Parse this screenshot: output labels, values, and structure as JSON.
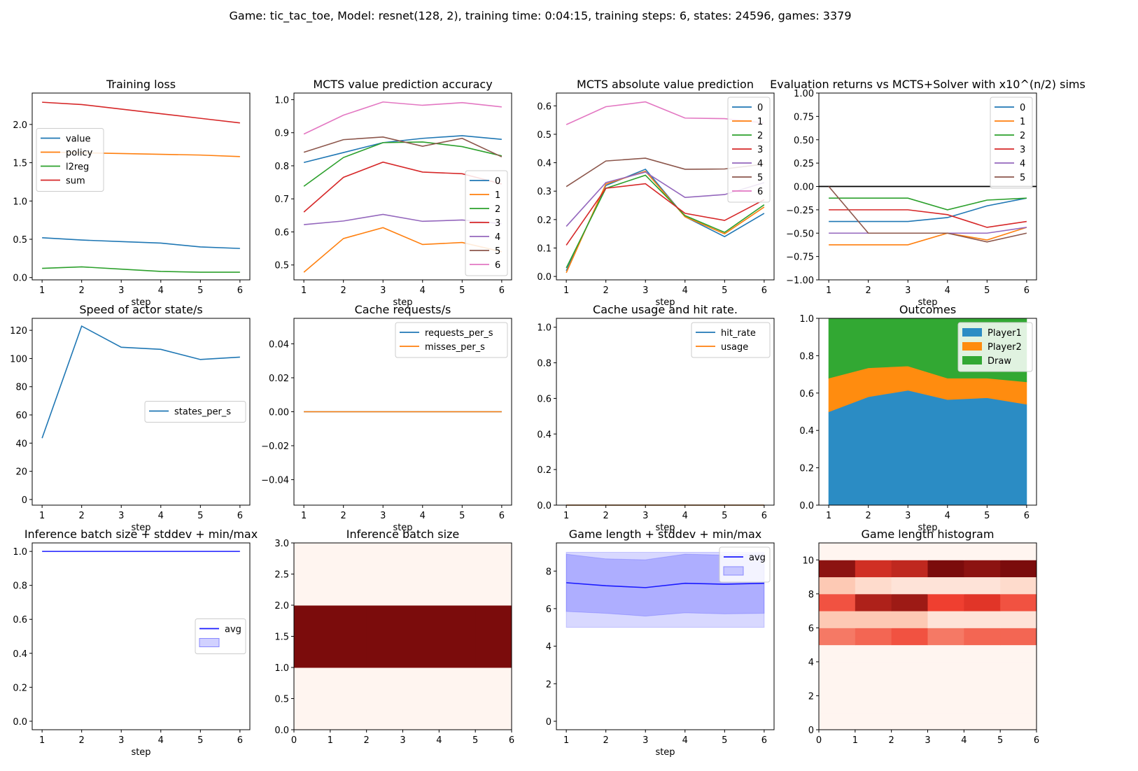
{
  "suptitle": "Game: tic_tac_toe, Model: resnet(128, 2), training time: 0:04:15, training steps: 6, states: 24596, games: 3379",
  "colors": {
    "tab": [
      "#1f77b4",
      "#ff7f0e",
      "#2ca02c",
      "#d62728",
      "#9467bd",
      "#8c564b",
      "#e377c2"
    ],
    "blue": "#1a1aff",
    "area": [
      "#2b8cc4",
      "#ff8c0f",
      "#32a833"
    ],
    "reds_low": "#fff5f0",
    "reds_high": "#7b0c0c"
  },
  "chart_data": [
    {
      "type": "line",
      "title": "Training loss",
      "xlabel": "step",
      "x": [
        1,
        2,
        3,
        4,
        5,
        6
      ],
      "xticks": [
        "1",
        "2",
        "3",
        "4",
        "5",
        "6"
      ],
      "yticks": [
        "0.0",
        "0.5",
        "1.0",
        "1.5",
        "2.0"
      ],
      "legend_position": "center-left",
      "series": [
        {
          "name": "value",
          "values": [
            0.52,
            0.49,
            0.47,
            0.45,
            0.4,
            0.38
          ]
        },
        {
          "name": "policy",
          "values": [
            1.64,
            1.63,
            1.62,
            1.61,
            1.6,
            1.58
          ]
        },
        {
          "name": "l2reg",
          "values": [
            0.12,
            0.14,
            0.11,
            0.08,
            0.07,
            0.07
          ]
        },
        {
          "name": "sum",
          "values": [
            2.29,
            2.26,
            2.2,
            2.14,
            2.08,
            2.02
          ]
        }
      ]
    },
    {
      "type": "line",
      "title": "MCTS value prediction accuracy",
      "xlabel": "step",
      "x": [
        1,
        2,
        3,
        4,
        5,
        6
      ],
      "xticks": [
        "1",
        "2",
        "3",
        "4",
        "5",
        "6"
      ],
      "yticks": [
        "0.5",
        "0.6",
        "0.7",
        "0.8",
        "0.9",
        "1.0"
      ],
      "legend_position": "lower-right",
      "series": [
        {
          "name": "0",
          "values": [
            0.81,
            0.84,
            0.87,
            0.883,
            0.891,
            0.88
          ]
        },
        {
          "name": "1",
          "values": [
            0.478,
            0.58,
            0.613,
            0.562,
            0.568,
            0.54
          ]
        },
        {
          "name": "2",
          "values": [
            0.738,
            0.825,
            0.87,
            0.872,
            0.858,
            0.83
          ]
        },
        {
          "name": "3",
          "values": [
            0.66,
            0.765,
            0.811,
            0.781,
            0.776,
            0.745
          ]
        },
        {
          "name": "4",
          "values": [
            0.622,
            0.633,
            0.653,
            0.632,
            0.636,
            0.625
          ]
        },
        {
          "name": "5",
          "values": [
            0.841,
            0.879,
            0.887,
            0.859,
            0.883,
            0.827
          ]
        },
        {
          "name": "6",
          "values": [
            0.896,
            0.953,
            0.993,
            0.983,
            0.991,
            0.978
          ]
        }
      ]
    },
    {
      "type": "line",
      "title": "MCTS absolute value prediction",
      "xlabel": "step",
      "x": [
        1,
        2,
        3,
        4,
        5,
        6
      ],
      "xticks": [
        "1",
        "2",
        "3",
        "4",
        "5",
        "6"
      ],
      "yticks": [
        "0.0",
        "0.1",
        "0.2",
        "0.3",
        "0.4",
        "0.5",
        "0.6"
      ],
      "legend_position": "upper-right",
      "series": [
        {
          "name": "0",
          "values": [
            0.02,
            0.32,
            0.377,
            0.21,
            0.14,
            0.222
          ]
        },
        {
          "name": "1",
          "values": [
            0.013,
            0.325,
            0.37,
            0.21,
            0.15,
            0.244
          ]
        },
        {
          "name": "2",
          "values": [
            0.03,
            0.31,
            0.356,
            0.214,
            0.155,
            0.252
          ]
        },
        {
          "name": "3",
          "values": [
            0.11,
            0.31,
            0.326,
            0.222,
            0.197,
            0.27
          ]
        },
        {
          "name": "4",
          "values": [
            0.176,
            0.33,
            0.367,
            0.278,
            0.288,
            0.33
          ]
        },
        {
          "name": "5",
          "values": [
            0.316,
            0.406,
            0.416,
            0.377,
            0.378,
            0.395
          ]
        },
        {
          "name": "6",
          "values": [
            0.534,
            0.597,
            0.614,
            0.557,
            0.555,
            0.54
          ]
        }
      ]
    },
    {
      "type": "line",
      "title": "Evaluation returns vs MCTS+Solver with x10^(n/2) sims",
      "xlabel": "step",
      "x": [
        1,
        2,
        3,
        4,
        5,
        6
      ],
      "xticks": [
        "1",
        "2",
        "3",
        "4",
        "5",
        "6"
      ],
      "yticks": [
        "−1.00",
        "−0.75",
        "−0.50",
        "−0.25",
        "0.00",
        "0.25",
        "0.50",
        "0.75",
        "1.00"
      ],
      "hline": 0,
      "legend_position": "upper-right",
      "series": [
        {
          "name": "0",
          "values": [
            -0.375,
            -0.375,
            -0.375,
            -0.333,
            -0.208,
            -0.125
          ]
        },
        {
          "name": "1",
          "values": [
            -0.625,
            -0.625,
            -0.625,
            -0.5,
            -0.573,
            -0.438
          ]
        },
        {
          "name": "2",
          "values": [
            -0.125,
            -0.125,
            -0.125,
            -0.25,
            -0.146,
            -0.125
          ]
        },
        {
          "name": "3",
          "values": [
            -0.25,
            -0.25,
            -0.25,
            -0.302,
            -0.438,
            -0.375
          ]
        },
        {
          "name": "4",
          "values": [
            -0.5,
            -0.5,
            -0.5,
            -0.5,
            -0.5,
            -0.438
          ]
        },
        {
          "name": "5",
          "values": [
            0.0,
            -0.5,
            -0.5,
            -0.5,
            -0.594,
            -0.5
          ]
        }
      ]
    },
    {
      "type": "line",
      "title": "Speed of actor state/s",
      "xlabel": "step",
      "x": [
        1,
        2,
        3,
        4,
        5,
        6
      ],
      "xticks": [
        "1",
        "2",
        "3",
        "4",
        "5",
        "6"
      ],
      "yticks": [
        "0",
        "20",
        "40",
        "60",
        "80",
        "100",
        "120"
      ],
      "legend_position": "center-right",
      "series": [
        {
          "name": "states_per_s",
          "values": [
            43.5,
            123.0,
            108.0,
            106.5,
            99.3,
            101.0
          ]
        }
      ]
    },
    {
      "type": "line",
      "title": "Cache requests/s",
      "xlabel": "step",
      "x": [
        1,
        2,
        3,
        4,
        5,
        6
      ],
      "xticks": [
        "1",
        "2",
        "3",
        "4",
        "5",
        "6"
      ],
      "yticks": [
        "−0.04",
        "−0.02",
        "0.00",
        "0.02",
        "0.04"
      ],
      "legend_position": "upper-right",
      "series": [
        {
          "name": "requests_per_s",
          "values": [
            0,
            0,
            0,
            0,
            0,
            0
          ]
        },
        {
          "name": "misses_per_s",
          "values": [
            0,
            0,
            0,
            0,
            0,
            0
          ]
        }
      ]
    },
    {
      "type": "line",
      "title": "Cache usage and hit rate.",
      "xlabel": "step",
      "x": [
        1,
        2,
        3,
        4,
        5,
        6
      ],
      "xticks": [
        "1",
        "2",
        "3",
        "4",
        "5",
        "6"
      ],
      "yticks": [
        "0.0",
        "0.2",
        "0.4",
        "0.6",
        "0.8",
        "1.0"
      ],
      "legend_position": "upper-right",
      "series": [
        {
          "name": "hit_rate",
          "values": [
            0,
            0,
            0,
            0,
            0,
            0
          ]
        },
        {
          "name": "usage",
          "values": [
            0,
            0,
            0,
            0,
            0,
            0
          ]
        }
      ]
    },
    {
      "type": "area",
      "title": "Outcomes",
      "xlabel": "step",
      "x": [
        1,
        2,
        3,
        4,
        5,
        6
      ],
      "xticks": [
        "1",
        "2",
        "3",
        "4",
        "5",
        "6"
      ],
      "yticks": [
        "0.0",
        "0.2",
        "0.4",
        "0.6",
        "0.8",
        "1.0"
      ],
      "legend_position": "upper-right",
      "series": [
        {
          "name": "Player1",
          "values": [
            0.5,
            0.58,
            0.615,
            0.565,
            0.575,
            0.54
          ]
        },
        {
          "name": "Player2",
          "values": [
            0.18,
            0.155,
            0.13,
            0.115,
            0.105,
            0.12
          ]
        },
        {
          "name": "Draw",
          "values": [
            0.32,
            0.265,
            0.255,
            0.32,
            0.32,
            0.34
          ]
        }
      ]
    },
    {
      "type": "line",
      "title": "Inference batch size + stddev + min/max",
      "xlabel": "step",
      "x": [
        1,
        2,
        3,
        4,
        5,
        6
      ],
      "xticks": [
        "1",
        "2",
        "3",
        "4",
        "5",
        "6"
      ],
      "yticks": [
        "0.0",
        "0.2",
        "0.4",
        "0.6",
        "0.8",
        "1.0"
      ],
      "legend_position": "center-right",
      "legend_entries": [
        "avg",
        ""
      ],
      "series": [
        {
          "name": "avg",
          "values": [
            1,
            1,
            1,
            1,
            1,
            1
          ]
        }
      ]
    },
    {
      "type": "heatmap",
      "title": "Inference batch size",
      "xticks": [
        "0",
        "1",
        "2",
        "3",
        "4",
        "5",
        "6"
      ],
      "yticks": [
        "0.0",
        "0.5",
        "1.0",
        "1.5",
        "2.0",
        "2.5",
        "3.0"
      ],
      "xlim": [
        0,
        6
      ],
      "ylim": [
        0,
        3
      ],
      "rows": [
        [
          0,
          0,
          0,
          0,
          0,
          0
        ],
        [
          1,
          1,
          1,
          1,
          1,
          1
        ],
        [
          0,
          0,
          0,
          0,
          0,
          0
        ]
      ]
    },
    {
      "type": "line",
      "title": "Game length + stddev + min/max",
      "xlabel": "step",
      "x": [
        1,
        2,
        3,
        4,
        5,
        6
      ],
      "xticks": [
        "1",
        "2",
        "3",
        "4",
        "5",
        "6"
      ],
      "yticks": [
        "0",
        "2",
        "4",
        "6",
        "8"
      ],
      "legend_position": "upper-right",
      "legend_entries": [
        "avg",
        ""
      ],
      "series": [
        {
          "name": "avg",
          "values": [
            7.38,
            7.22,
            7.12,
            7.35,
            7.3,
            7.35
          ]
        }
      ],
      "stddev_low": [
        5.85,
        5.75,
        5.6,
        5.78,
        5.72,
        5.75
      ],
      "stddev_high": [
        8.9,
        8.65,
        8.6,
        8.9,
        8.85,
        8.95
      ],
      "min": [
        5,
        5,
        5,
        5,
        5,
        5
      ],
      "max": [
        9,
        9,
        9,
        9,
        9,
        9
      ]
    },
    {
      "type": "heatmap",
      "title": "Game length histogram",
      "xticks": [
        "0",
        "1",
        "2",
        "3",
        "4",
        "5",
        "6"
      ],
      "yticks": [
        "0",
        "2",
        "4",
        "6",
        "8",
        "10"
      ],
      "xlim": [
        0,
        6
      ],
      "ylim": [
        0,
        11
      ],
      "rows": [
        [
          0,
          0,
          0,
          0,
          0,
          0
        ],
        [
          0,
          0,
          0,
          0,
          0,
          0
        ],
        [
          0,
          0,
          0,
          0,
          0,
          0
        ],
        [
          0,
          0,
          0,
          0,
          0,
          0
        ],
        [
          0,
          0,
          0,
          0,
          0,
          0
        ],
        [
          0.5,
          0.55,
          0.6,
          0.5,
          0.55,
          0.55
        ],
        [
          0.25,
          0.25,
          0.25,
          0.1,
          0.1,
          0.1
        ],
        [
          0.6,
          0.85,
          0.9,
          0.65,
          0.7,
          0.6
        ],
        [
          0.25,
          0.15,
          0.1,
          0.1,
          0.1,
          0.15
        ],
        [
          0.95,
          0.75,
          0.8,
          1.0,
          0.95,
          1.0
        ],
        [
          0,
          0,
          0,
          0,
          0,
          0
        ]
      ]
    }
  ]
}
